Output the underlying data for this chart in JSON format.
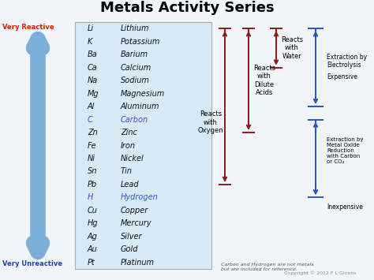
{
  "title": "Metals Activity Series",
  "title_fontsize": 13,
  "title_fontweight": "bold",
  "elements": [
    [
      "Li",
      "Lithium"
    ],
    [
      "K",
      "Potassium"
    ],
    [
      "Ba",
      "Barium"
    ],
    [
      "Ca",
      "Calcium"
    ],
    [
      "Na",
      "Sodium"
    ],
    [
      "Mg",
      "Magnesium"
    ],
    [
      "Al",
      "Aluminum"
    ],
    [
      "C",
      "Carbon"
    ],
    [
      "Zn",
      "Zinc"
    ],
    [
      "Fe",
      "Iron"
    ],
    [
      "Ni",
      "Nickel"
    ],
    [
      "Sn",
      "Tin"
    ],
    [
      "Pb",
      "Lead"
    ],
    [
      "H",
      "Hydrogen"
    ],
    [
      "Cu",
      "Copper"
    ],
    [
      "Hg",
      "Mercury"
    ],
    [
      "Ag",
      "Silver"
    ],
    [
      "Au",
      "Gold"
    ],
    [
      "Pt",
      "Platinum"
    ]
  ],
  "special_elements": [
    "C",
    "H"
  ],
  "special_color": "#3355cc",
  "normal_color": "#111111",
  "table_bg": "#d8eaf8",
  "table_border": "#aaaaaa",
  "dark_red": "#8b1a1a",
  "blue": "#2255cc",
  "arrow_blue_fill": "#7aaed6",
  "very_reactive_color": "#cc2200",
  "very_unreactive_color": "#2244aa",
  "footnote": "Carbon and Hydrogen are not metals\nbut are included for reference.",
  "copyright": "Copyright © 2012 F L Givens",
  "bg_color": "#f2f6fa",
  "react_oxygen_rows": [
    0,
    18
  ],
  "react_dilute_rows": [
    0,
    13
  ],
  "react_water_rows": [
    0,
    4
  ],
  "electrolysis_rows": [
    0,
    7
  ],
  "metal_oxide_rows": [
    7,
    13
  ]
}
